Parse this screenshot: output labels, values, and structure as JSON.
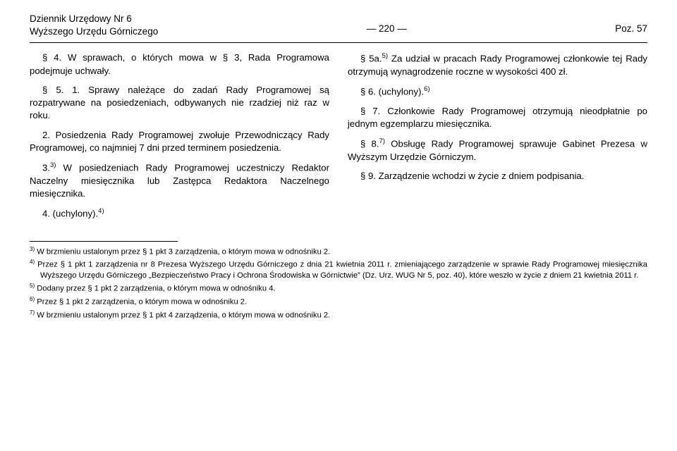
{
  "header": {
    "left_line1": "Dziennik Urzędowy Nr 6",
    "left_line2": "Wyższego Urzędu Górniczego",
    "center": "—  220  —",
    "right": "Poz. 57"
  },
  "left_paragraphs": [
    "§ 4. W sprawach, o których mowa w § 3, Rada Programowa podejmuje uchwały.",
    "§ 5. 1. Sprawy należące do zadań Rady Programowej są rozpatrywane na posiedzeniach, odbywanych nie rzadziej niż raz w roku.",
    "2. Posiedzenia Rady Programowej zwołuje Przewodniczący Rady Programowej, co najmniej 7 dni przed terminem posiedzenia.",
    "3.<sup>3)</sup> W posiedzeniach Rady Programowej uczestniczy Redaktor Naczelny miesięcznika lub Zastępca Redaktora Naczelnego miesięcznika.",
    "4. (uchylony).<sup>4)</sup>"
  ],
  "right_paragraphs": [
    "§ 5a.<sup>5)</sup> Za udział w pracach Rady Programowej członkowie tej Rady otrzymują wynagrodzenie roczne w wysokości 400 zł.",
    "§ 6. (uchylony).<sup>6)</sup>",
    "§ 7. Członkowie Rady Programowej otrzymują nieodpłatnie po jednym egzemplarzu miesięcznika.",
    "§ 8.<sup>7)</sup> Obsługę Rady Programowej sprawuje Gabinet Prezesa w Wyższym Urzędzie Górniczym.",
    "§ 9. Zarządzenie wchodzi w życie z dniem podpisania."
  ],
  "footnotes": [
    "<sup>3)</sup> W brzmieniu ustalonym przez § 1 pkt 3 zarządzenia, o którym mowa w odnośniku 2.",
    "<sup>4)</sup> Przez § 1 pkt 1 zarządzenia nr 8 Prezesa Wyższego Urzędu Górniczego z dnia 21 kwietnia 2011 r. zmieniającego zarządzenie w sprawie Rady Programowej miesięcznika Wyższego Urzędu Górniczego „Bezpieczeństwo Pracy i Ochrona Środowiska w Górnictwie” (Dz. Urz. WUG Nr 5, poz. 40), które weszło w życie z dniem 21 kwietnia 2011 r.",
    "<sup>5)</sup> Dodany przez § 1 pkt 2 zarządzenia, o którym mowa w odnośniku 4.",
    "<sup>6)</sup> Przez § 1 pkt 2 zarządzenia, o którym mowa w odnośniku 2.",
    "<sup>7)</sup> W brzmieniu ustalonym przez § 1 pkt 4 zarządzenia, o którym mowa w odnośniku 2."
  ]
}
